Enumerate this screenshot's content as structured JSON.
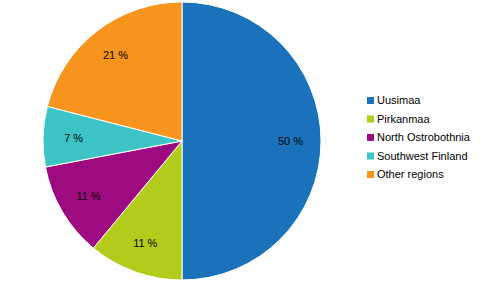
{
  "chart_data": {
    "type": "pie",
    "categories": [
      "Uusimaa",
      "Pirkanmaa",
      "North Ostrobothnia",
      "Southwest Finland",
      "Other regions"
    ],
    "values": [
      50,
      11,
      11,
      7,
      21
    ],
    "value_labels": [
      "50 %",
      "11 %",
      "11 %",
      "7 %",
      "21 %"
    ],
    "colors": [
      "#1a72bb",
      "#b3cb1a",
      "#9e0a7f",
      "#3cc4c6",
      "#f7941e"
    ],
    "data_labels": true,
    "legend": "right"
  }
}
